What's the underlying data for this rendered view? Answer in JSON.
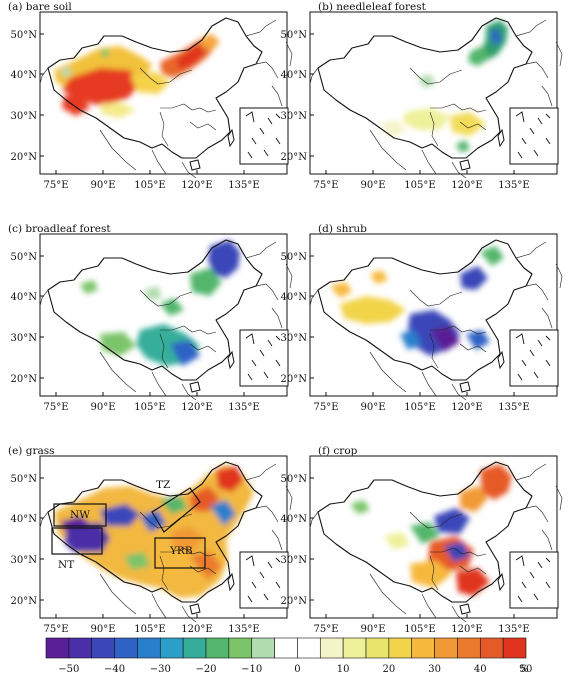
{
  "panels": [
    {
      "id": "a",
      "title": "(a) bare soil"
    },
    {
      "id": "b",
      "title": "(b) needleleaf forest"
    },
    {
      "id": "c",
      "title": "(c) broadleaf forest"
    },
    {
      "id": "d",
      "title": "(d) shrub"
    },
    {
      "id": "e",
      "title": "(e) grass"
    },
    {
      "id": "f",
      "title": "(f) crop"
    }
  ],
  "lat_ticks": [
    "50°N",
    "40°N",
    "30°N",
    "20°N"
  ],
  "lon_ticks": [
    "75°E",
    "90°E",
    "105°E",
    "120°E",
    "135°E"
  ],
  "region_labels": {
    "nw": "NW",
    "nt": "NT",
    "tz": "TZ",
    "yrb": "YRB"
  },
  "colorbar": {
    "colors": [
      "#5a1f96",
      "#4a2fa8",
      "#3b46b8",
      "#2f62c6",
      "#2a7fcc",
      "#2c9ec8",
      "#34ae9a",
      "#52b66c",
      "#7bc46a",
      "#b1dcb0",
      "#ffffff",
      "#ffffff",
      "#f4f4c9",
      "#eef19a",
      "#e9e46a",
      "#f2d44a",
      "#f6b93e",
      "#f19a35",
      "#ec7a2e",
      "#e65a28",
      "#e0341f"
    ],
    "labels": [
      "−50",
      "−40",
      "−30",
      "−20",
      "−10",
      "0",
      "10",
      "20",
      "30",
      "40",
      "50"
    ],
    "unit": "%"
  }
}
